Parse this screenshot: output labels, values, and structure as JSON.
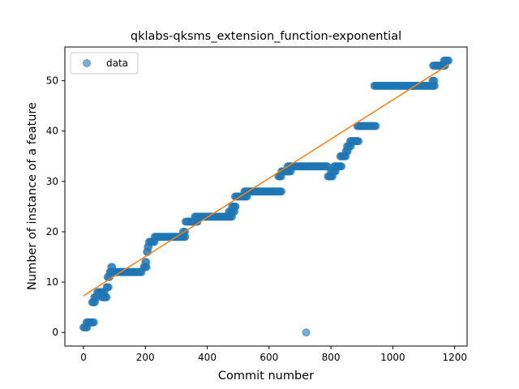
{
  "chart_data": {
    "type": "scatter",
    "title": "qklabs-qksms_extension_function-exponential",
    "xlabel": "Commit number",
    "ylabel": "Number of instance of a feature",
    "xlim": [
      -60,
      1240
    ],
    "ylim": [
      -2.7,
      56.7
    ],
    "xticks": [
      0,
      200,
      400,
      600,
      800,
      1000,
      1200
    ],
    "yticks": [
      0,
      10,
      20,
      30,
      40,
      50
    ],
    "legend": {
      "entries": [
        "data"
      ],
      "placement": "top-left"
    },
    "grid": false,
    "colors": {
      "points": "#1f77b4",
      "fit": "#ff7f0e"
    },
    "series": [
      {
        "name": "data",
        "kind": "points",
        "steps": [
          [
            0,
            12,
            1
          ],
          [
            10,
            35,
            2
          ],
          [
            28,
            38,
            6
          ],
          [
            35,
            45,
            7
          ],
          [
            45,
            60,
            8
          ],
          [
            60,
            75,
            7
          ],
          [
            62,
            70,
            8
          ],
          [
            75,
            82,
            9
          ],
          [
            78,
            84,
            11
          ],
          [
            85,
            92,
            12
          ],
          [
            90,
            95,
            13
          ],
          [
            95,
            190,
            12
          ],
          [
            195,
            205,
            13
          ],
          [
            200,
            203,
            14
          ],
          [
            205,
            210,
            16
          ],
          [
            208,
            213,
            17
          ],
          [
            212,
            230,
            18
          ],
          [
            230,
            330,
            19
          ],
          [
            322,
            328,
            20
          ],
          [
            330,
            370,
            22
          ],
          [
            360,
            480,
            23
          ],
          [
            470,
            490,
            24
          ],
          [
            480,
            492,
            25
          ],
          [
            490,
            530,
            27
          ],
          [
            520,
            640,
            28
          ],
          [
            630,
            640,
            31
          ],
          [
            640,
            660,
            32
          ],
          [
            655,
            670,
            32
          ],
          [
            660,
            790,
            33
          ],
          [
            790,
            805,
            31
          ],
          [
            800,
            815,
            32
          ],
          [
            810,
            835,
            33
          ],
          [
            830,
            850,
            35
          ],
          [
            848,
            855,
            36
          ],
          [
            852,
            865,
            37
          ],
          [
            862,
            890,
            38
          ],
          [
            885,
            945,
            41
          ],
          [
            940,
            1135,
            49
          ],
          [
            1128,
            1134,
            50
          ],
          [
            1130,
            1170,
            53
          ],
          [
            1165,
            1180,
            54
          ]
        ],
        "extra_points": [
          [
            720,
            0
          ]
        ]
      },
      {
        "name": "",
        "kind": "line",
        "x": [
          0,
          1180
        ],
        "y": [
          7.3,
          53.2
        ]
      }
    ]
  }
}
